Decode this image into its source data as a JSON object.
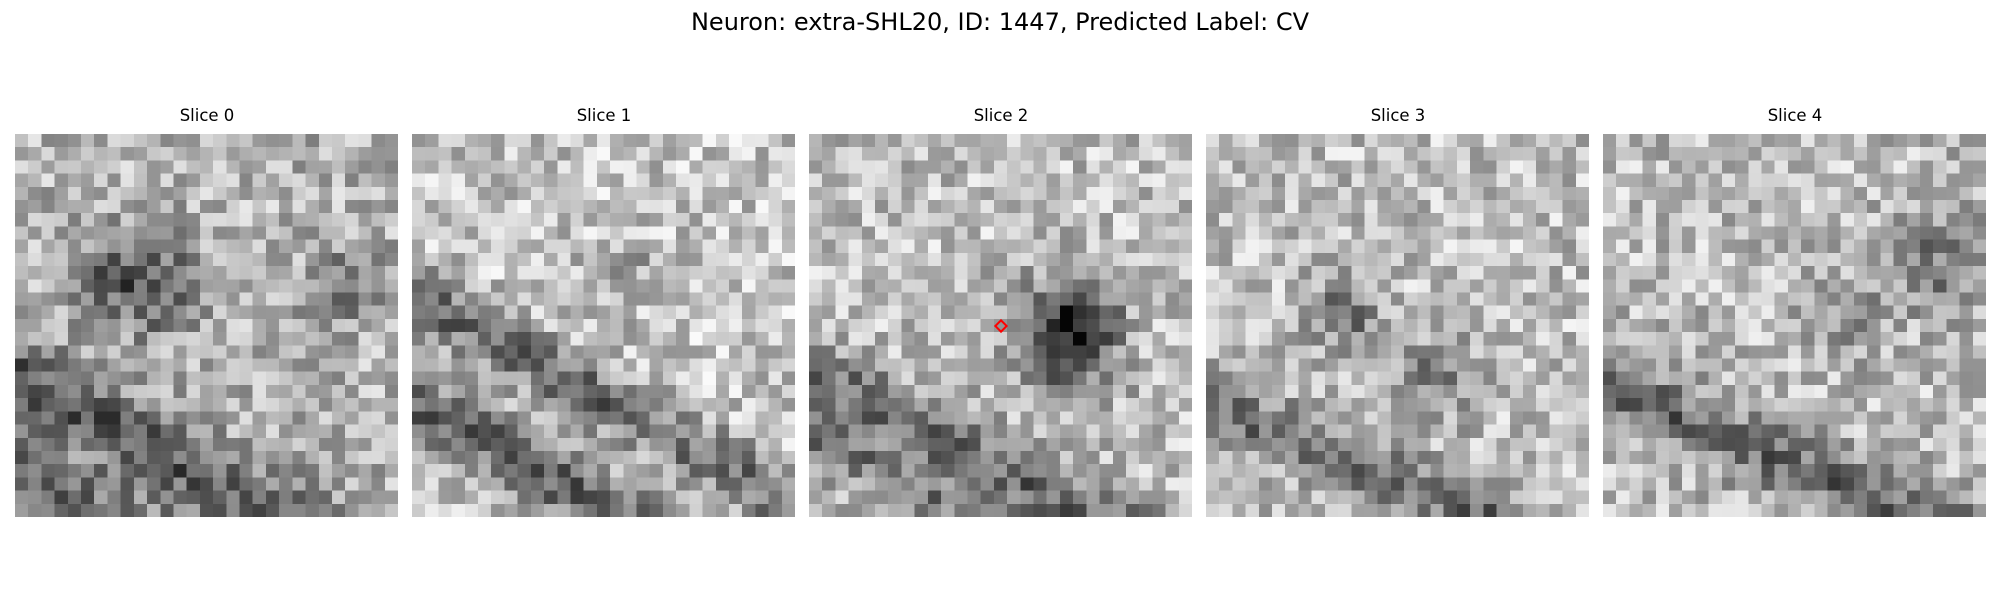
{
  "figure": {
    "title": "Neuron: extra-SHL20, ID: 1447, Predicted Label: CV"
  },
  "panels": [
    {
      "title": "Slice 0",
      "seed": 1011,
      "darkness": 0.58,
      "structures": "dark membrane band lower-left, dark blob center-left"
    },
    {
      "title": "Slice 1",
      "seed": 2027,
      "darkness": 0.46,
      "structures": "two diagonal dark membranes lower half"
    },
    {
      "title": "Slice 2",
      "seed": 3041,
      "darkness": 0.5,
      "structures": "dark blob right of center, diagonal membranes lower"
    },
    {
      "title": "Slice 3",
      "seed": 4057,
      "darkness": 0.5,
      "structures": "dark blobs center, dark band lower"
    },
    {
      "title": "Slice 4",
      "seed": 5077,
      "darkness": 0.52,
      "structures": "diagonal dark band, dark upper-right region"
    }
  ],
  "marker": {
    "panel_index": 2,
    "shape": "diamond",
    "color": "#ff0000",
    "grid_col": 14.5,
    "grid_row": 14.5
  },
  "grid": {
    "columns": 29,
    "rows": 29,
    "colormap": "gray"
  }
}
